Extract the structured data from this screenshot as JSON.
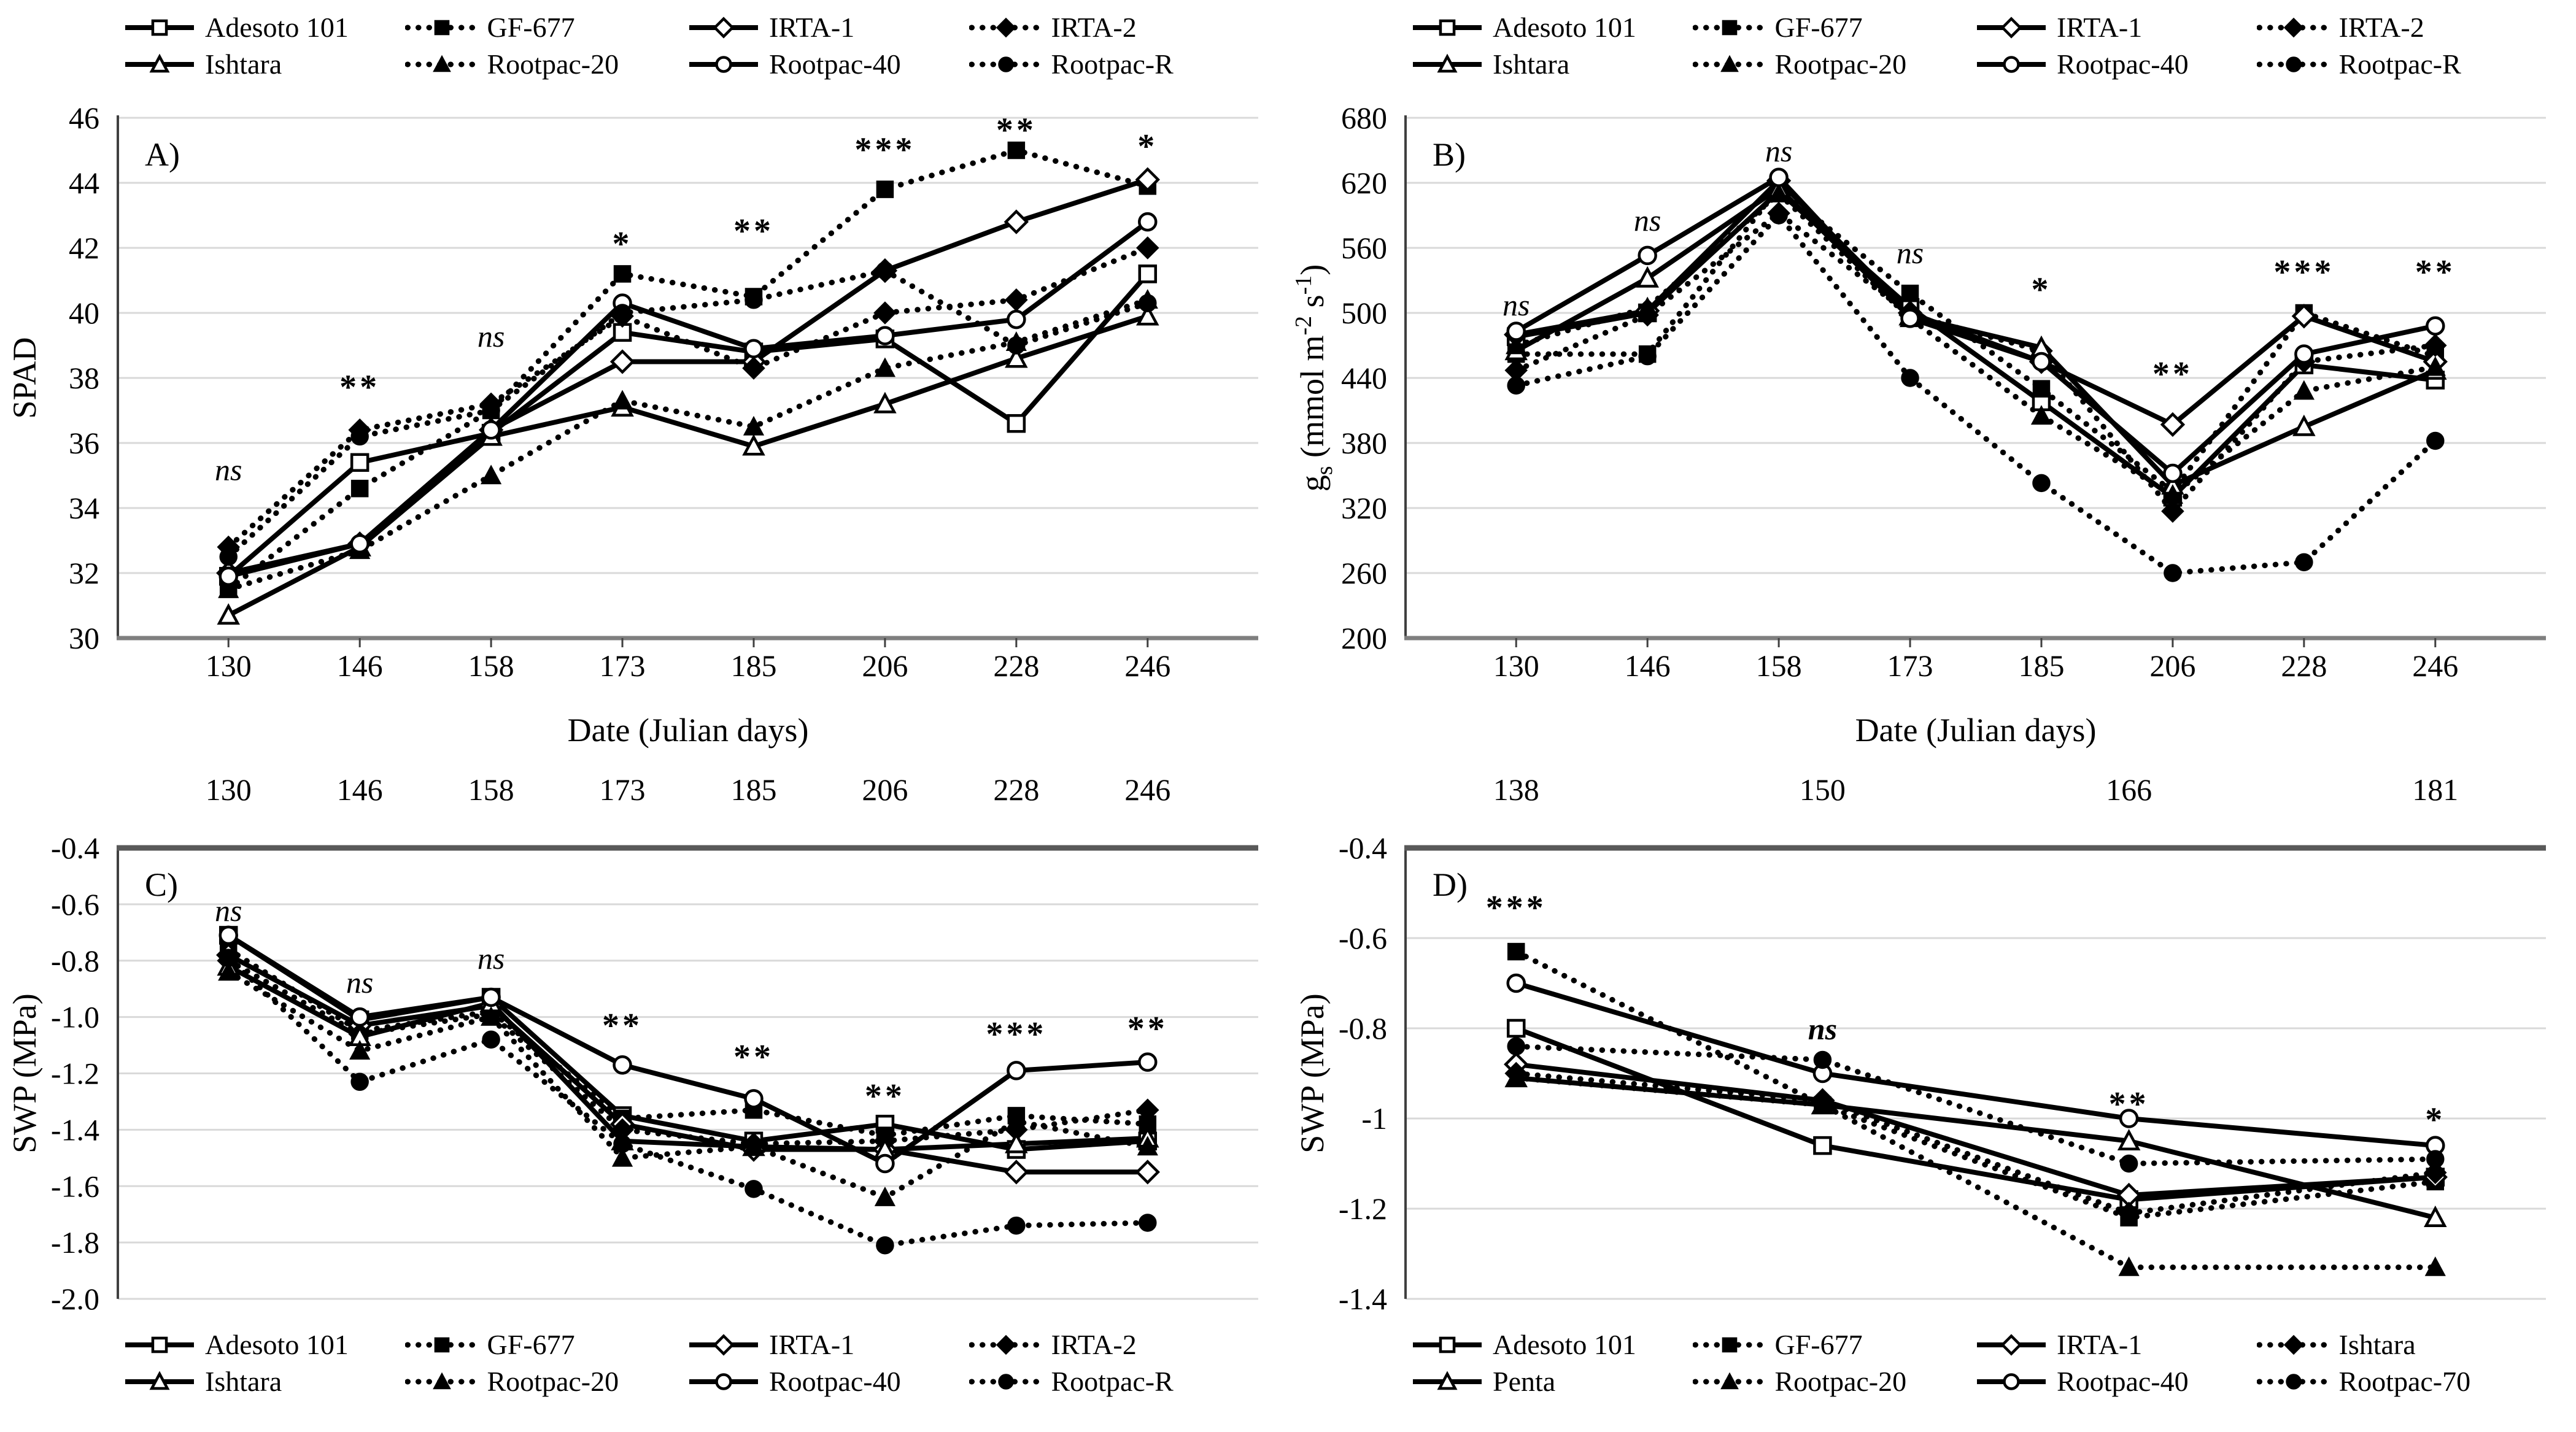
{
  "figure": {
    "background": "#ffffff",
    "text_color": "#000000",
    "grid_color": "#d9d9d9",
    "axis_color": "#404040",
    "axis_color_light": "#7f7f7f",
    "series_color": "#000000"
  },
  "chart_data": [
    {
      "id": "A",
      "type": "line",
      "panel_letter": "A)",
      "title": "",
      "ylabel_parts": [
        {
          "t": "SPAD"
        }
      ],
      "xlabel": "Date (Julian days)",
      "legend_position": "top",
      "x_axis_side": "bottom",
      "categories": [
        "130",
        "146",
        "158",
        "173",
        "185",
        "206",
        "228",
        "246"
      ],
      "ymax": 46,
      "ymin": 30,
      "y_ticks": [
        {
          "v": 46,
          "label": "46"
        },
        {
          "v": 44,
          "label": "44"
        },
        {
          "v": 42,
          "label": "42"
        },
        {
          "v": 40,
          "label": "40"
        },
        {
          "v": 38,
          "label": "38"
        },
        {
          "v": 36,
          "label": "36"
        },
        {
          "v": 34,
          "label": "34"
        },
        {
          "v": 32,
          "label": "32"
        },
        {
          "v": 30,
          "label": "30"
        }
      ],
      "series": [
        {
          "name": "Adesoto 101",
          "marker": "open-square",
          "line": "solid",
          "values": [
            31.9,
            35.4,
            36.3,
            39.4,
            38.8,
            39.2,
            36.6,
            41.2
          ]
        },
        {
          "name": "GF-677",
          "marker": "filled-square",
          "line": "dotted",
          "values": [
            31.5,
            34.6,
            37.0,
            41.2,
            40.5,
            43.8,
            45.0,
            43.9
          ]
        },
        {
          "name": "IRTA-1",
          "marker": "open-diamond",
          "line": "solid",
          "values": [
            32.0,
            32.9,
            36.4,
            38.5,
            38.5,
            41.3,
            42.8,
            44.1
          ]
        },
        {
          "name": "IRTA-2",
          "marker": "filled-diamond",
          "line": "dotted",
          "values": [
            32.8,
            36.4,
            37.2,
            39.9,
            38.3,
            40.0,
            40.4,
            42.0
          ]
        },
        {
          "name": "Ishtara",
          "marker": "open-triangle",
          "line": "solid",
          "values": [
            30.7,
            32.8,
            36.2,
            37.1,
            35.9,
            37.2,
            38.6,
            39.9
          ]
        },
        {
          "name": "Rootpac-20",
          "marker": "filled-triangle",
          "line": "dotted",
          "values": [
            31.5,
            32.7,
            35.0,
            37.3,
            36.5,
            38.3,
            39.1,
            40.4
          ]
        },
        {
          "name": "Rootpac-40",
          "marker": "open-circle",
          "line": "solid",
          "values": [
            31.9,
            32.9,
            36.4,
            40.3,
            38.9,
            39.3,
            39.8,
            42.8
          ]
        },
        {
          "name": "Rootpac-R",
          "marker": "filled-circle",
          "line": "dotted",
          "values": [
            32.5,
            36.2,
            37.0,
            40.0,
            40.4,
            41.3,
            39.0,
            40.3
          ]
        }
      ],
      "annotations": [
        {
          "x": "130",
          "y": 35.2,
          "label": "ns"
        },
        {
          "x": "146",
          "y": 37.9,
          "label": "**"
        },
        {
          "x": "158",
          "y": 39.3,
          "label": "ns"
        },
        {
          "x": "173",
          "y": 42.3,
          "label": "*"
        },
        {
          "x": "185",
          "y": 42.7,
          "label": "**"
        },
        {
          "x": "206",
          "y": 45.2,
          "label": "***"
        },
        {
          "x": "228",
          "y": 45.8,
          "label": "**"
        },
        {
          "x": "246",
          "y": 45.3,
          "label": "*"
        }
      ]
    },
    {
      "id": "B",
      "type": "line",
      "panel_letter": "B)",
      "title": "",
      "ylabel_parts": [
        {
          "t": "g"
        },
        {
          "t": "s",
          "style": "sub"
        },
        {
          "t": " (mmol m"
        },
        {
          "t": "-2",
          "style": "sup"
        },
        {
          "t": " s"
        },
        {
          "t": "-1",
          "style": "sup"
        },
        {
          "t": ")"
        }
      ],
      "xlabel": "Date (Julian days)",
      "legend_position": "top",
      "x_axis_side": "bottom",
      "categories": [
        "130",
        "146",
        "158",
        "173",
        "185",
        "206",
        "228",
        "246"
      ],
      "ymax": 680,
      "ymin": 200,
      "y_ticks": [
        {
          "v": 680,
          "label": "680"
        },
        {
          "v": 620,
          "label": "620"
        },
        {
          "v": 560,
          "label": "560"
        },
        {
          "v": 500,
          "label": "500"
        },
        {
          "v": 440,
          "label": "440"
        },
        {
          "v": 380,
          "label": "380"
        },
        {
          "v": 320,
          "label": "320"
        },
        {
          "v": 260,
          "label": "260"
        },
        {
          "v": 200,
          "label": "200"
        }
      ],
      "series": [
        {
          "name": "Adesoto 101",
          "marker": "open-square",
          "line": "solid",
          "values": [
            478,
            500,
            612,
            505,
            418,
            330,
            452,
            438
          ]
        },
        {
          "name": "GF-677",
          "marker": "filled-square",
          "line": "dotted",
          "values": [
            462,
            462,
            615,
            518,
            430,
            335,
            500,
            460
          ]
        },
        {
          "name": "IRTA-1",
          "marker": "open-diamond",
          "line": "solid",
          "values": [
            480,
            502,
            622,
            500,
            455,
            397,
            497,
            455
          ]
        },
        {
          "name": "IRTA-2",
          "marker": "filled-diamond",
          "line": "dotted",
          "values": [
            447,
            498,
            592,
            498,
            465,
            317,
            455,
            470
          ]
        },
        {
          "name": "Ishtara",
          "marker": "open-triangle",
          "line": "solid",
          "values": [
            465,
            532,
            615,
            497,
            468,
            341,
            395,
            447
          ]
        },
        {
          "name": "Rootpac-20",
          "marker": "filled-triangle",
          "line": "dotted",
          "values": [
            470,
            505,
            610,
            495,
            405,
            332,
            428,
            450
          ]
        },
        {
          "name": "Rootpac-40",
          "marker": "open-circle",
          "line": "solid",
          "values": [
            483,
            553,
            625,
            495,
            455,
            352,
            462,
            488
          ]
        },
        {
          "name": "Rootpac-R",
          "marker": "filled-circle",
          "line": "dotted",
          "values": [
            433,
            460,
            590,
            440,
            343,
            260,
            270,
            382
          ]
        }
      ],
      "annotations": [
        {
          "x": "130",
          "y": 508,
          "label": "ns"
        },
        {
          "x": "146",
          "y": 586,
          "label": "ns"
        },
        {
          "x": "158",
          "y": 650,
          "label": "ns"
        },
        {
          "x": "173",
          "y": 556,
          "label": "ns"
        },
        {
          "x": "185",
          "y": 527,
          "label": "*"
        },
        {
          "x": "206",
          "y": 449,
          "label": "**"
        },
        {
          "x": "228",
          "y": 543,
          "label": "***"
        },
        {
          "x": "246",
          "y": 543,
          "label": "**"
        }
      ]
    },
    {
      "id": "C",
      "type": "line",
      "panel_letter": "C)",
      "title": "",
      "ylabel_parts": [
        {
          "t": "SWP (MPa)"
        }
      ],
      "xlabel": "",
      "legend_position": "bottom",
      "x_axis_side": "top",
      "categories": [
        "130",
        "146",
        "158",
        "173",
        "185",
        "206",
        "228",
        "246"
      ],
      "ymax": -0.4,
      "ymin": -2.0,
      "y_ticks": [
        {
          "v": -0.4,
          "label": "-0.4"
        },
        {
          "v": -0.6,
          "label": "-0.6"
        },
        {
          "v": -0.8,
          "label": "-0.8"
        },
        {
          "v": -1.0,
          "label": "-1.0"
        },
        {
          "v": -1.2,
          "label": "-1.2"
        },
        {
          "v": -1.4,
          "label": "-1.4"
        },
        {
          "v": -1.6,
          "label": "-1.6"
        },
        {
          "v": -1.8,
          "label": "-1.8"
        },
        {
          "v": -2.0,
          "label": "-2.0"
        }
      ],
      "series": [
        {
          "name": "Adesoto 101",
          "marker": "open-square",
          "line": "solid",
          "values": [
            -0.71,
            -1.01,
            -0.93,
            -1.35,
            -1.44,
            -1.38,
            -1.47,
            -1.44
          ]
        },
        {
          "name": "GF-677",
          "marker": "filled-square",
          "line": "dotted",
          "values": [
            -0.76,
            -1.05,
            -0.98,
            -1.36,
            -1.33,
            -1.42,
            -1.35,
            -1.38
          ]
        },
        {
          "name": "IRTA-1",
          "marker": "open-diamond",
          "line": "solid",
          "values": [
            -0.78,
            -1.03,
            -0.96,
            -1.38,
            -1.47,
            -1.47,
            -1.55,
            -1.55
          ]
        },
        {
          "name": "IRTA-2",
          "marker": "filled-diamond",
          "line": "dotted",
          "values": [
            -0.8,
            -1.06,
            -0.99,
            -1.4,
            -1.45,
            -1.44,
            -1.4,
            -1.33
          ]
        },
        {
          "name": "Ishtara",
          "marker": "open-triangle",
          "line": "solid",
          "values": [
            -0.82,
            -1.07,
            -0.95,
            -1.44,
            -1.46,
            -1.47,
            -1.45,
            -1.43
          ]
        },
        {
          "name": "Rootpac-20",
          "marker": "filled-triangle",
          "line": "dotted",
          "values": [
            -0.84,
            -1.12,
            -1.0,
            -1.5,
            -1.46,
            -1.64,
            -1.37,
            -1.46
          ]
        },
        {
          "name": "Rootpac-40",
          "marker": "open-circle",
          "line": "solid",
          "values": [
            -0.71,
            -1.0,
            -0.93,
            -1.17,
            -1.29,
            -1.52,
            -1.19,
            -1.16
          ]
        },
        {
          "name": "Rootpac-R",
          "marker": "filled-circle",
          "line": "dotted",
          "values": [
            -0.79,
            -1.23,
            -1.08,
            -1.45,
            -1.61,
            -1.81,
            -1.74,
            -1.73
          ]
        }
      ],
      "annotations": [
        {
          "x": "130",
          "y": -0.62,
          "label": "ns"
        },
        {
          "x": "146",
          "y": -0.875,
          "label": "ns"
        },
        {
          "x": "158",
          "y": -0.79,
          "label": "ns"
        },
        {
          "x": "173",
          "y": -1.01,
          "label": "**"
        },
        {
          "x": "185",
          "y": -1.12,
          "label": "**"
        },
        {
          "x": "206",
          "y": -1.26,
          "label": "**"
        },
        {
          "x": "228",
          "y": -1.04,
          "label": "***"
        },
        {
          "x": "246",
          "y": -1.02,
          "label": "**"
        }
      ]
    },
    {
      "id": "D",
      "type": "line",
      "panel_letter": "D)",
      "title": "",
      "ylabel_parts": [
        {
          "t": "SWP (MPa)"
        }
      ],
      "xlabel": "",
      "legend_position": "bottom",
      "x_axis_side": "top",
      "categories": [
        "138",
        "150",
        "166",
        "181"
      ],
      "ymax": -0.4,
      "ymin": -1.4,
      "y_ticks": [
        {
          "v": -0.4,
          "label": "-0.4"
        },
        {
          "v": -0.6,
          "label": "-0.6"
        },
        {
          "v": -0.8,
          "label": "-0.8"
        },
        {
          "v": -1.0,
          "label": "-1"
        },
        {
          "v": -1.2,
          "label": "-1.2"
        },
        {
          "v": -1.4,
          "label": "-1.4"
        }
      ],
      "series": [
        {
          "name": "Adesoto 101",
          "marker": "open-square",
          "line": "solid",
          "values": [
            -0.8,
            -1.06,
            -1.18,
            -1.13
          ]
        },
        {
          "name": "GF-677",
          "marker": "filled-square",
          "line": "dotted",
          "values": [
            -0.63,
            -0.97,
            -1.22,
            -1.14
          ]
        },
        {
          "name": "IRTA-1",
          "marker": "open-diamond",
          "line": "solid",
          "values": [
            -0.88,
            -0.96,
            -1.17,
            -1.13
          ]
        },
        {
          "name": "Ishtara",
          "marker": "filled-diamond",
          "line": "dotted",
          "values": [
            -0.9,
            -0.96,
            -1.21,
            -1.12
          ]
        },
        {
          "name": "Penta",
          "marker": "open-triangle",
          "line": "solid",
          "values": [
            -0.91,
            -0.97,
            -1.05,
            -1.22
          ]
        },
        {
          "name": "Rootpac-20",
          "marker": "filled-triangle",
          "line": "dotted",
          "values": [
            -0.91,
            -0.97,
            -1.33,
            -1.33
          ]
        },
        {
          "name": "Rootpac-40",
          "marker": "open-circle",
          "line": "solid",
          "values": [
            -0.7,
            -0.9,
            -1.0,
            -1.06
          ]
        },
        {
          "name": "Rootpac-70",
          "marker": "filled-circle",
          "line": "dotted",
          "values": [
            -0.84,
            -0.87,
            -1.1,
            -1.09
          ]
        }
      ],
      "annotations": [
        {
          "x": "138",
          "y": -0.52,
          "label": "***"
        },
        {
          "x": "150",
          "y": -0.8,
          "label": "ns",
          "bold": true
        },
        {
          "x": "166",
          "y": -0.955,
          "label": "**"
        },
        {
          "x": "181",
          "y": -0.99,
          "label": "*"
        }
      ]
    }
  ]
}
